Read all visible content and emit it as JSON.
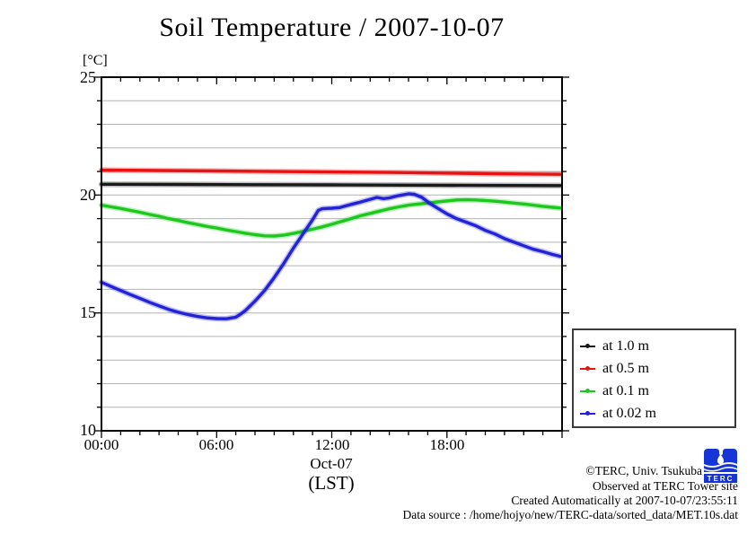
{
  "title": "Soil Temperature / 2007-10-07",
  "y_axis": {
    "unit_label": "[°C]",
    "labels": [
      "25",
      "20",
      "15",
      "10"
    ]
  },
  "x_axis": {
    "tick_labels": [
      "00:00",
      "06:00",
      "12:00",
      "18:00"
    ],
    "sub_label": "Oct-07",
    "sub_label2": "(LST)"
  },
  "legend": {
    "items": [
      {
        "label": "at 1.0 m",
        "color": "#1a1a1a"
      },
      {
        "label": "at 0.5 m",
        "color": "#e81212"
      },
      {
        "label": "at 0.1 m",
        "color": "#1dc81d"
      },
      {
        "label": "at 0.02 m",
        "color": "#2222d8"
      }
    ]
  },
  "footer": {
    "line1": "©TERC, Univ. Tsukuba",
    "line2": "Observed at TERC Tower site",
    "line3": "Created Automatically at 2007-10-07/23:55:11",
    "line4": "Data source : /home/hojyo/new/TERC-data/sorted_data/MET.10s.dat",
    "logo_text": "TERC"
  },
  "chart_data": {
    "type": "line",
    "title": "Soil Temperature / 2007-10-07",
    "xlabel": "Oct-07 (LST)",
    "ylabel": "[°C]",
    "xlim_hours": [
      0,
      24
    ],
    "ylim": [
      10,
      25
    ],
    "x_major_ticks_hours": [
      0,
      6,
      12,
      18,
      24
    ],
    "x_minor_tick_interval_hours": 1,
    "y_major_ticks": [
      10,
      15,
      20,
      25
    ],
    "y_minor_tick_interval": 1,
    "grid": "horizontal gridlines every 1 degree C",
    "legend_position": "outside lower right",
    "series": [
      {
        "name": "at 1.0 m",
        "color": "#1a1a1a",
        "points": [
          [
            0,
            20.46
          ],
          [
            4,
            20.45
          ],
          [
            8,
            20.44
          ],
          [
            12,
            20.43
          ],
          [
            16,
            20.42
          ],
          [
            20,
            20.41
          ],
          [
            23.9,
            20.4
          ]
        ]
      },
      {
        "name": "at 0.5 m",
        "color": "#e81212",
        "points": [
          [
            0,
            21.06
          ],
          [
            3,
            21.04
          ],
          [
            6,
            21.02
          ],
          [
            9,
            21.0
          ],
          [
            12,
            20.98
          ],
          [
            15,
            20.96
          ],
          [
            18,
            20.93
          ],
          [
            21,
            20.9
          ],
          [
            23.9,
            20.88
          ]
        ]
      },
      {
        "name": "at 0.1 m",
        "color": "#1dc81d",
        "points": [
          [
            0,
            19.57
          ],
          [
            0.5,
            19.5
          ],
          [
            1,
            19.43
          ],
          [
            1.5,
            19.35
          ],
          [
            2,
            19.27
          ],
          [
            2.5,
            19.18
          ],
          [
            3,
            19.1
          ],
          [
            3.5,
            19.0
          ],
          [
            4,
            18.92
          ],
          [
            4.5,
            18.83
          ],
          [
            5,
            18.75
          ],
          [
            5.5,
            18.67
          ],
          [
            6,
            18.6
          ],
          [
            6.5,
            18.52
          ],
          [
            7,
            18.45
          ],
          [
            7.5,
            18.38
          ],
          [
            8,
            18.32
          ],
          [
            8.5,
            18.27
          ],
          [
            9,
            18.26
          ],
          [
            9.5,
            18.3
          ],
          [
            10,
            18.37
          ],
          [
            10.5,
            18.46
          ],
          [
            11,
            18.55
          ],
          [
            11.5,
            18.65
          ],
          [
            12,
            18.76
          ],
          [
            12.5,
            18.88
          ],
          [
            13,
            19.0
          ],
          [
            13.5,
            19.12
          ],
          [
            14,
            19.22
          ],
          [
            14.5,
            19.32
          ],
          [
            15,
            19.42
          ],
          [
            15.5,
            19.5
          ],
          [
            16,
            19.57
          ],
          [
            16.5,
            19.62
          ],
          [
            17,
            19.66
          ],
          [
            17.5,
            19.71
          ],
          [
            18,
            19.75
          ],
          [
            18.5,
            19.79
          ],
          [
            19,
            19.8
          ],
          [
            19.5,
            19.79
          ],
          [
            20,
            19.77
          ],
          [
            20.5,
            19.74
          ],
          [
            21,
            19.7
          ],
          [
            21.5,
            19.66
          ],
          [
            22,
            19.62
          ],
          [
            22.5,
            19.57
          ],
          [
            23,
            19.52
          ],
          [
            23.5,
            19.48
          ],
          [
            23.9,
            19.45
          ]
        ]
      },
      {
        "name": "at 0.02 m",
        "color": "#2222d8",
        "points": [
          [
            0,
            16.3
          ],
          [
            0.5,
            16.12
          ],
          [
            1,
            15.95
          ],
          [
            1.5,
            15.78
          ],
          [
            2,
            15.62
          ],
          [
            2.5,
            15.45
          ],
          [
            3,
            15.3
          ],
          [
            3.5,
            15.15
          ],
          [
            4,
            15.03
          ],
          [
            4.5,
            14.93
          ],
          [
            5,
            14.85
          ],
          [
            5.5,
            14.79
          ],
          [
            6,
            14.76
          ],
          [
            6.5,
            14.75
          ],
          [
            7,
            14.82
          ],
          [
            7.25,
            14.95
          ],
          [
            7.5,
            15.1
          ],
          [
            8,
            15.5
          ],
          [
            8.5,
            15.95
          ],
          [
            9,
            16.5
          ],
          [
            9.5,
            17.1
          ],
          [
            10,
            17.75
          ],
          [
            10.5,
            18.35
          ],
          [
            11,
            18.95
          ],
          [
            11.3,
            19.35
          ],
          [
            11.5,
            19.42
          ],
          [
            12,
            19.44
          ],
          [
            12.4,
            19.47
          ],
          [
            13,
            19.6
          ],
          [
            13.4,
            19.68
          ],
          [
            14,
            19.82
          ],
          [
            14.35,
            19.9
          ],
          [
            14.7,
            19.85
          ],
          [
            15,
            19.88
          ],
          [
            15.5,
            19.98
          ],
          [
            16,
            20.05
          ],
          [
            16.3,
            20.03
          ],
          [
            16.7,
            19.9
          ],
          [
            17.1,
            19.65
          ],
          [
            17.5,
            19.45
          ],
          [
            18,
            19.2
          ],
          [
            18.5,
            19.0
          ],
          [
            19,
            18.85
          ],
          [
            19.5,
            18.7
          ],
          [
            20,
            18.5
          ],
          [
            20.5,
            18.35
          ],
          [
            21,
            18.15
          ],
          [
            21.5,
            18.0
          ],
          [
            22,
            17.85
          ],
          [
            22.5,
            17.7
          ],
          [
            23,
            17.6
          ],
          [
            23.5,
            17.48
          ],
          [
            23.9,
            17.4
          ]
        ]
      }
    ]
  }
}
